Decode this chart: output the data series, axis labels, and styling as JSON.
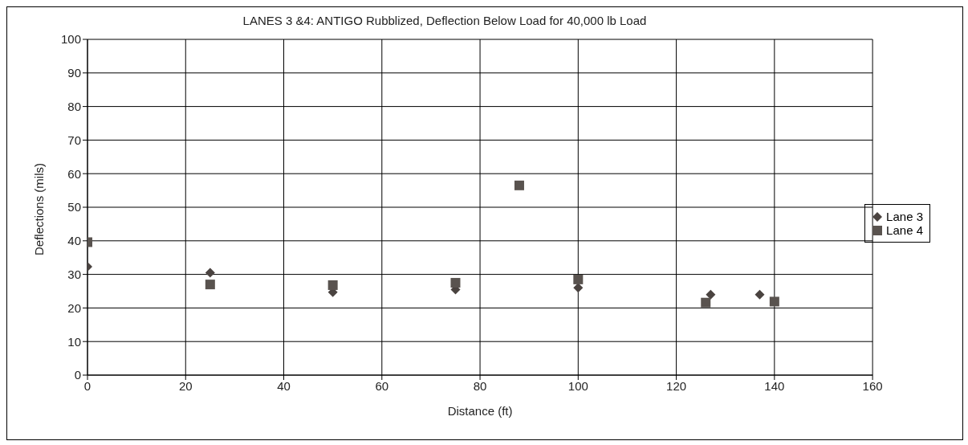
{
  "chart_data": {
    "type": "scatter",
    "title": "LANES 3 &4: ANTIGO Rubblized, Deflection Below Load for 40,000 lb Load",
    "xlabel": "Distance (ft)",
    "ylabel": "Deflections (mils)",
    "xlim": [
      0,
      160
    ],
    "xticks": [
      0,
      20,
      40,
      60,
      80,
      100,
      120,
      140,
      160
    ],
    "ylim": [
      0,
      100
    ],
    "yticks": [
      0,
      10,
      20,
      30,
      40,
      50,
      60,
      70,
      80,
      90,
      100
    ],
    "grid": true,
    "legend": "right",
    "series": [
      {
        "name": "Lane 3",
        "color": "#4a4340",
        "marker": "diamond",
        "x": [
          0,
          25,
          50,
          75,
          100,
          127,
          137
        ],
        "values": [
          32.3,
          30.5,
          24.7,
          25.5,
          26,
          24,
          24
        ]
      },
      {
        "name": "Lane 4",
        "color": "#59534f",
        "marker": "square",
        "x": [
          0,
          25,
          50,
          75,
          88,
          100,
          126,
          140
        ],
        "values": [
          39.6,
          27,
          26.8,
          27.5,
          56.5,
          28.5,
          21.6,
          21.9
        ]
      }
    ]
  }
}
